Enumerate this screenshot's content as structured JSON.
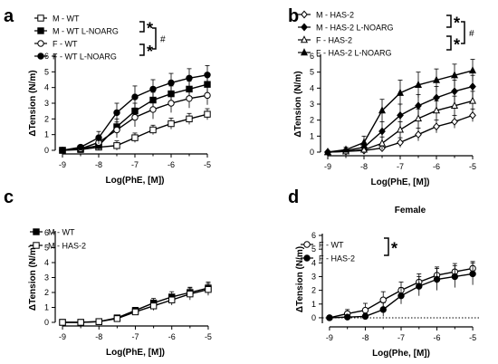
{
  "chart_data": [
    {
      "panel": "a",
      "type": "line",
      "title": "",
      "xlabel": "Log(PhE, [M])",
      "ylabel": "ΔTension (N/m)",
      "xlim": [
        -9.2,
        -4.8
      ],
      "ylim": [
        0,
        6
      ],
      "xticks": [
        -9,
        -8,
        -7,
        -6,
        -5
      ],
      "yticks": [
        0,
        1,
        2,
        3,
        4,
        5,
        6
      ],
      "x": [
        -9,
        -8.5,
        -8,
        -7.5,
        -7,
        -6.5,
        -6,
        -5.5,
        -5
      ],
      "grid": false,
      "legend_position": "top-left",
      "significance": [
        {
          "symbol": "*",
          "between": "M - WT vs M - WT L-NOARG"
        },
        {
          "symbol": "*",
          "between": "F - WT vs F - WT L-NOARG"
        },
        {
          "symbol": "#",
          "between": "M - WT L-NOARG vs F - WT L-NOARG"
        }
      ],
      "series": [
        {
          "name": "M - WT",
          "marker": "open-square",
          "values": [
            0.0,
            0.05,
            0.2,
            0.3,
            0.8,
            1.3,
            1.7,
            2.0,
            2.3
          ],
          "errors": [
            0.05,
            0.1,
            0.2,
            0.3,
            0.3,
            0.3,
            0.35,
            0.35,
            0.35
          ]
        },
        {
          "name": "M - WT L-NOARG",
          "marker": "filled-square",
          "values": [
            0.0,
            0.1,
            0.3,
            1.5,
            2.5,
            3.2,
            3.6,
            3.9,
            4.2
          ],
          "errors": [
            0.05,
            0.1,
            0.3,
            0.5,
            0.5,
            0.5,
            0.5,
            0.5,
            0.5
          ]
        },
        {
          "name": "F - WT",
          "marker": "open-circle",
          "values": [
            0.0,
            0.1,
            0.5,
            1.3,
            2.1,
            2.6,
            3.0,
            3.3,
            3.5
          ],
          "errors": [
            0.05,
            0.1,
            0.3,
            0.5,
            0.6,
            0.6,
            0.6,
            0.6,
            0.6
          ]
        },
        {
          "name": "F - WT L-NOARG",
          "marker": "filled-circle",
          "values": [
            0.0,
            0.2,
            0.8,
            2.4,
            3.4,
            3.9,
            4.3,
            4.6,
            4.8
          ],
          "errors": [
            0.05,
            0.15,
            0.4,
            0.6,
            0.7,
            0.6,
            0.6,
            0.6,
            0.6
          ]
        }
      ]
    },
    {
      "panel": "b",
      "type": "line",
      "title": "",
      "xlabel": "Log(PhE, [M])",
      "ylabel": "ΔTension (N/m)",
      "xlim": [
        -9.2,
        -4.8
      ],
      "ylim": [
        0,
        6
      ],
      "xticks": [
        -9,
        -8,
        -7,
        -6,
        -5
      ],
      "yticks": [
        0,
        1,
        2,
        3,
        4,
        5,
        6
      ],
      "x": [
        -9,
        -8.5,
        -8,
        -7.5,
        -7,
        -6.5,
        -6,
        -5.5,
        -5
      ],
      "grid": false,
      "legend_position": "top-left",
      "significance": [
        {
          "symbol": "*",
          "between": "M - HAS-2 vs M - HAS-2 L-NOARG"
        },
        {
          "symbol": "*",
          "between": "F - HAS-2 vs F - HAS-2 L-NOARG"
        },
        {
          "symbol": "#",
          "between": "M - HAS-2 L-NOARG vs F - HAS-2 L-NOARG"
        }
      ],
      "series": [
        {
          "name": "M - HAS-2",
          "marker": "open-diamond",
          "values": [
            0.0,
            0.05,
            0.1,
            0.25,
            0.6,
            1.1,
            1.6,
            1.9,
            2.3
          ],
          "errors": [
            0.05,
            0.05,
            0.1,
            0.2,
            0.3,
            0.4,
            0.4,
            0.4,
            0.4
          ]
        },
        {
          "name": "M - HAS-2 L-NOARG",
          "marker": "filled-diamond",
          "values": [
            0.0,
            0.1,
            0.3,
            1.3,
            2.3,
            2.9,
            3.4,
            3.8,
            4.1
          ],
          "errors": [
            0.05,
            0.1,
            0.3,
            0.6,
            0.7,
            0.7,
            0.7,
            0.7,
            0.7
          ]
        },
        {
          "name": "F - HAS-2",
          "marker": "open-triangle",
          "values": [
            0.0,
            0.05,
            0.15,
            0.55,
            1.4,
            2.1,
            2.6,
            2.9,
            3.2
          ],
          "errors": [
            0.05,
            0.05,
            0.2,
            0.4,
            0.5,
            0.6,
            0.6,
            0.6,
            0.6
          ]
        },
        {
          "name": "F - HAS-2 L-NOARG",
          "marker": "filled-triangle",
          "values": [
            0.0,
            0.15,
            0.6,
            2.6,
            3.7,
            4.2,
            4.5,
            4.8,
            5.1
          ],
          "errors": [
            0.05,
            0.15,
            0.4,
            0.7,
            0.8,
            0.8,
            0.7,
            0.7,
            0.7
          ]
        }
      ]
    },
    {
      "panel": "c",
      "type": "line",
      "title": "",
      "xlabel": "Log(PhE, [M])",
      "ylabel": "ΔTension (N/m)",
      "xlim": [
        -9.2,
        -4.8
      ],
      "ylim": [
        0,
        6
      ],
      "xticks": [
        -9,
        -8,
        -7,
        -6,
        -5
      ],
      "yticks": [
        0,
        1,
        2,
        3,
        4,
        5,
        6
      ],
      "x": [
        -9,
        -8.5,
        -8,
        -7.5,
        -7,
        -6.5,
        -6,
        -5.5,
        -5
      ],
      "grid": false,
      "legend_position": "top-left",
      "significance": [],
      "series": [
        {
          "name": "M - WT",
          "marker": "filled-square",
          "values": [
            0.0,
            0.0,
            0.05,
            0.3,
            0.8,
            1.3,
            1.7,
            2.0,
            2.3
          ],
          "errors": [
            0.02,
            0.02,
            0.05,
            0.1,
            0.2,
            0.3,
            0.35,
            0.35,
            0.4
          ]
        },
        {
          "name": "M - HAS-2",
          "marker": "open-square",
          "values": [
            0.0,
            0.0,
            0.05,
            0.25,
            0.7,
            1.1,
            1.5,
            1.9,
            2.2
          ],
          "errors": [
            0.02,
            0.02,
            0.05,
            0.1,
            0.2,
            0.3,
            0.35,
            0.4,
            0.4
          ]
        }
      ]
    },
    {
      "panel": "d",
      "type": "line",
      "title": "Female",
      "xlabel": "Log(Phe, [M])",
      "ylabel": "ΔTension (N/m)",
      "xlim": [
        -9.2,
        -4.8
      ],
      "ylim": [
        -0.4,
        6
      ],
      "xticks": [
        -9,
        -8,
        -7,
        -6,
        -5
      ],
      "yticks": [
        0,
        1,
        2,
        3,
        4,
        5,
        6
      ],
      "x": [
        -9,
        -8.5,
        -8,
        -7.5,
        -7,
        -6.5,
        -6,
        -5.5,
        -5
      ],
      "grid": false,
      "zero_line": "dotted",
      "legend_position": "top-left",
      "significance": [
        {
          "symbol": "*",
          "between": "F - WT vs F - HAS-2"
        }
      ],
      "series": [
        {
          "name": "F - WT",
          "marker": "open-circle",
          "values": [
            0.0,
            0.3,
            0.55,
            1.3,
            2.0,
            2.6,
            3.1,
            3.35,
            3.6
          ],
          "errors": [
            0.1,
            0.3,
            0.5,
            0.6,
            0.6,
            0.6,
            0.6,
            0.6,
            0.5
          ]
        },
        {
          "name": "F - HAS-2",
          "marker": "filled-circle",
          "values": [
            0.0,
            0.05,
            0.1,
            0.6,
            1.6,
            2.3,
            2.8,
            3.0,
            3.2
          ],
          "errors": [
            0.05,
            0.1,
            0.2,
            0.5,
            0.6,
            0.7,
            0.8,
            0.8,
            0.8
          ]
        }
      ]
    }
  ]
}
